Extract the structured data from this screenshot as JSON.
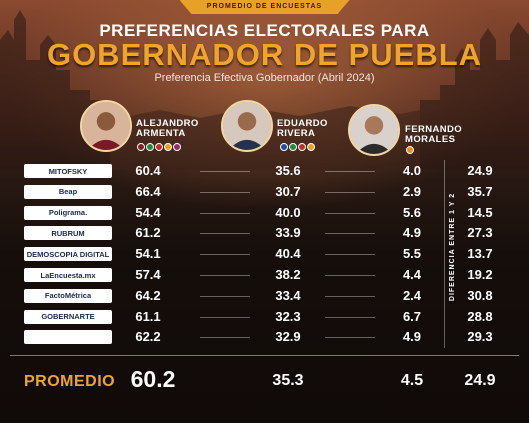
{
  "header": {
    "tag": "PROMEDIO DE ENCUESTAS",
    "title_line1": "PREFERENCIAS ELECTORALES PARA",
    "title_line2": "GOBERNADOR DE PUEBLA",
    "subtitle": "Preferencia Efectiva Gobernador (Abril 2024)"
  },
  "candidates": [
    {
      "first": "ALEJANDRO",
      "last": "ARMENTA"
    },
    {
      "first": "EDUARDO",
      "last": "RIVERA"
    },
    {
      "first": "FERNANDO",
      "last": "MORALES"
    }
  ],
  "difference_label": "DIFERENCIA ENTRE 1 Y 2",
  "average_label": "PROMEDIO",
  "colors": {
    "accent": "#f0a42c",
    "morena": "#8b1a2b",
    "pan": "#1f4fa3",
    "pri": "#1f8a3b",
    "mc": "#f08a1c"
  },
  "chart_data": {
    "type": "table",
    "columns": [
      "ALEJANDRO ARMENTA",
      "EDUARDO RIVERA",
      "FERNANDO MORALES",
      "DIFERENCIA ENTRE 1 Y 2"
    ],
    "rows": [
      {
        "pollster": "MITOFSKY",
        "armenta": "60.4",
        "rivera": "35.6",
        "morales": "4.0",
        "diff": "24.9"
      },
      {
        "pollster": "Beap",
        "armenta": "66.4",
        "rivera": "30.7",
        "morales": "2.9",
        "diff": "35.7"
      },
      {
        "pollster": "Poligrama.",
        "armenta": "54.4",
        "rivera": "40.0",
        "morales": "5.6",
        "diff": "14.5"
      },
      {
        "pollster": "RUBRUM",
        "armenta": "61.2",
        "rivera": "33.9",
        "morales": "4.9",
        "diff": "27.3"
      },
      {
        "pollster": "DEMOSCOPIA DIGITAL",
        "armenta": "54.1",
        "rivera": "40.4",
        "morales": "5.5",
        "diff": "13.7"
      },
      {
        "pollster": "LaEncuesta.mx",
        "armenta": "57.4",
        "rivera": "38.2",
        "morales": "4.4",
        "diff": "19.2"
      },
      {
        "pollster": "FactoMétrica",
        "armenta": "64.2",
        "rivera": "33.4",
        "morales": "2.4",
        "diff": "30.8"
      },
      {
        "pollster": "GOBERNARTE",
        "armenta": "61.1",
        "rivera": "32.3",
        "morales": "6.7",
        "diff": "28.8"
      },
      {
        "pollster": "",
        "armenta": "62.2",
        "rivera": "32.9",
        "morales": "4.9",
        "diff": "29.3"
      }
    ],
    "average": {
      "armenta": "60.2",
      "rivera": "35.3",
      "morales": "4.5",
      "diff": "24.9"
    }
  }
}
